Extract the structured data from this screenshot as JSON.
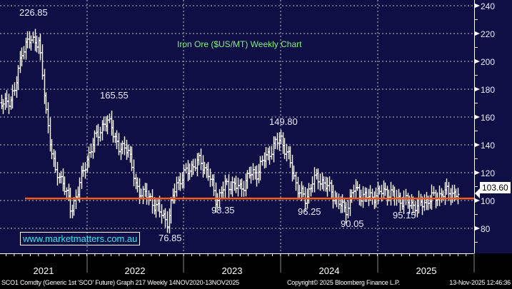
{
  "chart_data": {
    "type": "bar",
    "subtype": "ohlc-weekly",
    "title": "Iron Ore ($US/MT) Weekly Chart",
    "ylim": [
      62,
      242
    ],
    "yticks": [
      80,
      100,
      120,
      140,
      160,
      180,
      200,
      220,
      240
    ],
    "xlabels": [
      "2021",
      "2022",
      "2023",
      "2024",
      "2025"
    ],
    "grid": true,
    "series": [
      {
        "name": "SCO1 Comdty",
        "start_month": "2021-01",
        "monthly_close": [
          165,
          168,
          170,
          178,
          210,
          215,
          215,
          160,
          120,
          115,
          92,
          110,
          130,
          145,
          155,
          155,
          135,
          140,
          110,
          105,
          100,
          92,
          85,
          112,
          118,
          125,
          128,
          120,
          100,
          110,
          112,
          108,
          118,
          120,
          130,
          138,
          145,
          130,
          110,
          100,
          115,
          115,
          108,
          100,
          92,
          108,
          104,
          102,
          105,
          107,
          103,
          100,
          98,
          96,
          100,
          102,
          105,
          106,
          104
        ]
      }
    ],
    "horizontal_line": 101.5,
    "last_price": "103.60",
    "annotations": [
      "226.85",
      "165.55",
      "149.80",
      "98.35",
      "76.85",
      "96.25",
      "90.05",
      "95.15"
    ],
    "colors": {
      "background": "#0f0e45",
      "bars": "#ffffff",
      "hline": "#ff5a14",
      "grid": "#9a9aa8",
      "title": "#7cf27c"
    }
  },
  "watermark": "www.marketmatters.com.au",
  "status": {
    "left": "SCO1 Comdty (Generic 1st 'SCO' Future) Graph 217 Weekly 14NOV2020-13NOV2025",
    "center": "Copyright© 2025 Bloomberg Finance L.P.",
    "right": "13-Nov-2025 12:46:36"
  }
}
